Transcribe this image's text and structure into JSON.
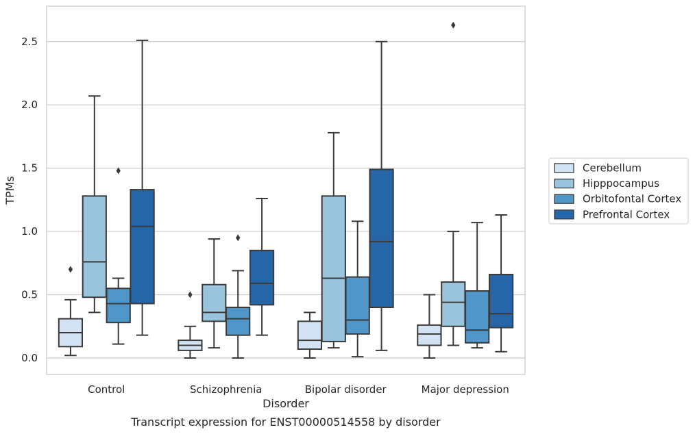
{
  "chart_data": {
    "type": "box",
    "xlabel": "Disorder",
    "ylabel": "TPMs",
    "caption": "Transcript expression for ENST00000514558 by disorder",
    "ylim": [
      -0.13,
      2.78
    ],
    "yticks": [
      0.0,
      0.5,
      1.0,
      1.5,
      2.0,
      2.5
    ],
    "ytick_labels": [
      "0.0",
      "0.5",
      "1.0",
      "1.5",
      "2.0",
      "2.5"
    ],
    "grid": "horizontal",
    "legend_position": "right",
    "categories": [
      "Control",
      "Schizophrenia",
      "Bipolar disorder",
      "Major depression"
    ],
    "series": [
      {
        "name": "Cerebellum",
        "color": "#d3e3f3",
        "boxes": [
          {
            "whisker_low": 0.02,
            "q1": 0.09,
            "median": 0.2,
            "q3": 0.31,
            "whisker_high": 0.46,
            "outliers": [
              0.7
            ]
          },
          {
            "whisker_low": 0.0,
            "q1": 0.06,
            "median": 0.1,
            "q3": 0.14,
            "whisker_high": 0.25,
            "outliers": [
              0.5
            ]
          },
          {
            "whisker_low": 0.0,
            "q1": 0.07,
            "median": 0.14,
            "q3": 0.29,
            "whisker_high": 0.36,
            "outliers": []
          },
          {
            "whisker_low": 0.0,
            "q1": 0.1,
            "median": 0.19,
            "q3": 0.26,
            "whisker_high": 0.5,
            "outliers": []
          }
        ]
      },
      {
        "name": "Hipppocampus",
        "color": "#9ac3dc",
        "boxes": [
          {
            "whisker_low": 0.36,
            "q1": 0.48,
            "median": 0.76,
            "q3": 1.28,
            "whisker_high": 2.07,
            "outliers": []
          },
          {
            "whisker_low": 0.08,
            "q1": 0.29,
            "median": 0.36,
            "q3": 0.58,
            "whisker_high": 0.94,
            "outliers": []
          },
          {
            "whisker_low": 0.08,
            "q1": 0.13,
            "median": 0.63,
            "q3": 1.28,
            "whisker_high": 1.78,
            "outliers": []
          },
          {
            "whisker_low": 0.1,
            "q1": 0.25,
            "median": 0.44,
            "q3": 0.6,
            "whisker_high": 1.0,
            "outliers": [
              2.63
            ]
          }
        ]
      },
      {
        "name": "Orbitofontal Cortex",
        "color": "#5096c8",
        "boxes": [
          {
            "whisker_low": 0.11,
            "q1": 0.28,
            "median": 0.43,
            "q3": 0.55,
            "whisker_high": 0.63,
            "outliers": [
              1.48
            ]
          },
          {
            "whisker_low": 0.0,
            "q1": 0.18,
            "median": 0.31,
            "q3": 0.4,
            "whisker_high": 0.69,
            "outliers": [
              0.95
            ]
          },
          {
            "whisker_low": 0.01,
            "q1": 0.19,
            "median": 0.3,
            "q3": 0.64,
            "whisker_high": 1.08,
            "outliers": []
          },
          {
            "whisker_low": 0.08,
            "q1": 0.12,
            "median": 0.22,
            "q3": 0.53,
            "whisker_high": 1.07,
            "outliers": []
          }
        ]
      },
      {
        "name": "Prefrontal Cortex",
        "color": "#2666a8",
        "boxes": [
          {
            "whisker_low": 0.18,
            "q1": 0.43,
            "median": 1.04,
            "q3": 1.33,
            "whisker_high": 2.51,
            "outliers": []
          },
          {
            "whisker_low": 0.18,
            "q1": 0.42,
            "median": 0.59,
            "q3": 0.85,
            "whisker_high": 1.26,
            "outliers": []
          },
          {
            "whisker_low": 0.06,
            "q1": 0.4,
            "median": 0.92,
            "q3": 1.49,
            "whisker_high": 2.5,
            "outliers": []
          },
          {
            "whisker_low": 0.05,
            "q1": 0.24,
            "median": 0.35,
            "q3": 0.66,
            "whisker_high": 1.13,
            "outliers": []
          }
        ]
      }
    ]
  }
}
